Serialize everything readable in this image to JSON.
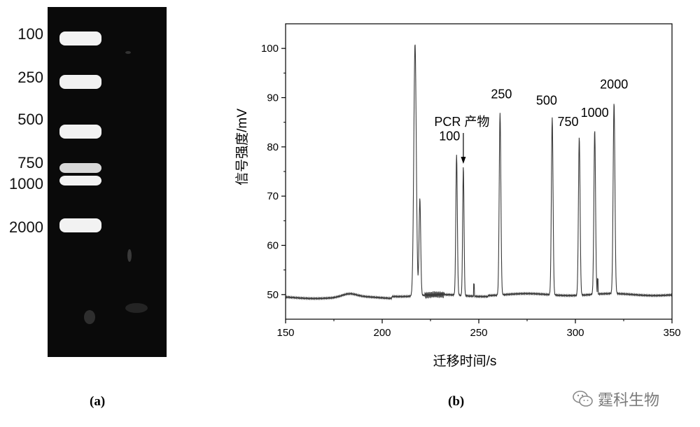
{
  "panel_a": {
    "label": "(a)",
    "ladder_labels": [
      "100",
      "250",
      "500",
      "750",
      "1000",
      "2000"
    ]
  },
  "panel_b": {
    "label": "(b)"
  },
  "watermark": {
    "text": "霆科生物",
    "icon": "wechat-icon"
  },
  "chart_data": [
    {
      "type": "gel",
      "ladder_bands": [
        100,
        250,
        500,
        750,
        1000,
        2000
      ],
      "ladder_labels": [
        "100",
        "250",
        "500",
        "750",
        "1000",
        "2000"
      ]
    },
    {
      "type": "line",
      "xlabel": "迁移时间/s",
      "ylabel": "信号强度/mV",
      "xlim": [
        150,
        350
      ],
      "ylim": [
        45,
        105
      ],
      "xticks": [
        150,
        200,
        250,
        300,
        350
      ],
      "yticks": [
        50,
        60,
        70,
        80,
        90,
        100
      ],
      "grid": false,
      "peaks": [
        {
          "x": 217,
          "y": 101
        },
        {
          "x": 219.5,
          "y": 69.5
        },
        {
          "x": 238.5,
          "y": 78.5
        },
        {
          "x": 242,
          "y": 76
        },
        {
          "x": 261,
          "y": 87
        },
        {
          "x": 288,
          "y": 86
        },
        {
          "x": 302,
          "y": 82
        },
        {
          "x": 310,
          "y": 83.5
        },
        {
          "x": 320,
          "y": 89
        }
      ],
      "annotations": [
        {
          "text": "100",
          "x": 238.5,
          "y": 78.5
        },
        {
          "text": "PCR 产物",
          "x": 242,
          "y": 76
        },
        {
          "text": "250",
          "x": 261,
          "y": 87
        },
        {
          "text": "500",
          "x": 288,
          "y": 86
        },
        {
          "text": "750",
          "x": 302,
          "y": 82
        },
        {
          "text": "1000",
          "x": 310,
          "y": 83.5
        },
        {
          "text": "2000",
          "x": 320,
          "y": 89
        }
      ]
    }
  ]
}
